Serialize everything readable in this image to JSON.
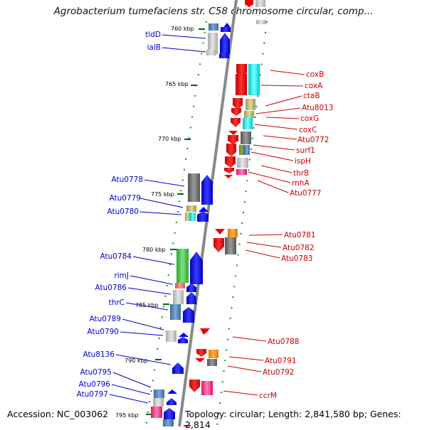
{
  "title": "Agrobacterium tumefaciens str. C58 chromosome circular, comp...",
  "footer": {
    "accession": "Accession: NC_003062",
    "summary": "Topology: circular; Length: 2,841,580 bp; Genes: 2,814"
  },
  "ticks": [
    "760 kbp",
    "765 kbp",
    "770 kbp",
    "775 kbp",
    "780 kbp",
    "785 kbp",
    "790 kbp",
    "795 kbp"
  ],
  "genes_left": [
    "tldD",
    "ialB",
    "Atu0778",
    "Atu0779",
    "Atu0780",
    "Atu0784",
    "rimJ",
    "Atu0786",
    "thrC",
    "Atu0789",
    "Atu0790",
    "Atu8136",
    "Atu0795",
    "Atu0796",
    "Atu0797"
  ],
  "genes_right": [
    "coxB",
    "coxA",
    "ctaB",
    "Atu8013",
    "coxG",
    "coxC",
    "Atu0772",
    "surf1",
    "ispH",
    "thrB",
    "rnhA",
    "Atu0777",
    "Atu0781",
    "Atu0782",
    "Atu0783",
    "Atu0788",
    "Atu0791",
    "Atu0792",
    "ccrM"
  ],
  "colors": {
    "forward": "#0000ee",
    "reverse": "#ee0000",
    "backbone": "#888888",
    "tick": "#008800"
  }
}
